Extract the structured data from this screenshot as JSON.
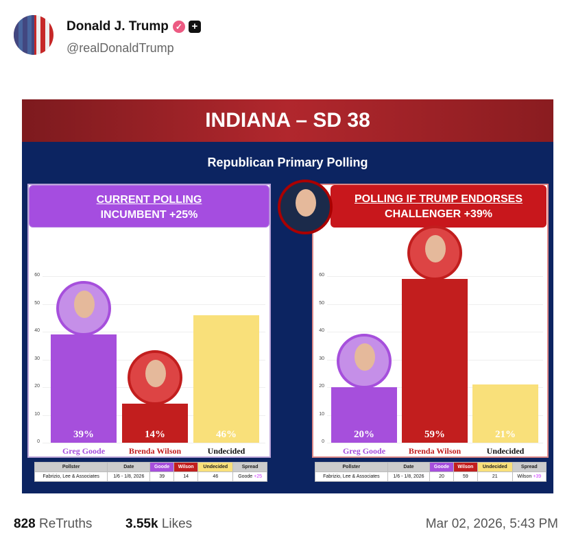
{
  "post": {
    "author": "Donald J. Trump",
    "handle": "@realDonaldTrump",
    "retruths_count": "828",
    "retruths_label": "ReTruths",
    "likes_count": "3.55k",
    "likes_label": "Likes",
    "timestamp": "Mar 02, 2026, 5:43 PM"
  },
  "poster": {
    "title": "INDIANA – SD 38",
    "subtitle": "Republican Primary Polling",
    "left": {
      "head1": "CURRENT POLLING",
      "head2": "INCUMBENT +25%",
      "color": "#a54de0"
    },
    "right": {
      "head1": "POLLING IF TRUMP ENDORSES",
      "head2": "CHALLENGER +39%",
      "color": "#c8171c"
    }
  },
  "chart_data": [
    {
      "type": "bar",
      "title": "CURRENT POLLING",
      "categories": [
        "Greg Goode",
        "Brenda Wilson",
        "Undecided"
      ],
      "values": [
        39,
        14,
        46
      ],
      "labels": [
        "39%",
        "14%",
        "46%"
      ],
      "ylim": [
        0,
        60
      ],
      "yticks": [
        "0",
        "10",
        "20",
        "30",
        "40",
        "50",
        "60"
      ],
      "colors": [
        "#a64fdc",
        "#c21e1e",
        "#f9e07a"
      ],
      "grid": true
    },
    {
      "type": "bar",
      "title": "POLLING IF TRUMP ENDORSES",
      "categories": [
        "Greg Goode",
        "Brenda Wilson",
        "Undecided"
      ],
      "values": [
        20,
        59,
        21
      ],
      "labels": [
        "20%",
        "59%",
        "21%"
      ],
      "ylim": [
        0,
        60
      ],
      "yticks": [
        "0",
        "10",
        "20",
        "30",
        "40",
        "50",
        "60"
      ],
      "colors": [
        "#a64fdc",
        "#c21e1e",
        "#f9e07a"
      ],
      "grid": true
    }
  ],
  "tables": [
    {
      "headers": [
        "Pollster",
        "Date",
        "Goode",
        "Wilson",
        "Undecided",
        "Spread"
      ],
      "row": [
        "Fabrizio, Lee & Associates",
        "1/6 - 1/8, 2026",
        "39",
        "14",
        "46"
      ],
      "spread_name": "Goode",
      "spread_value": "+25"
    },
    {
      "headers": [
        "Pollster",
        "Date",
        "Goode",
        "Wilson",
        "Undecided",
        "Spread"
      ],
      "row": [
        "Fabrizio, Lee & Associates",
        "1/6 - 1/8, 2026",
        "20",
        "59",
        "21"
      ],
      "spread_name": "Wilson",
      "spread_value": "+39"
    }
  ]
}
